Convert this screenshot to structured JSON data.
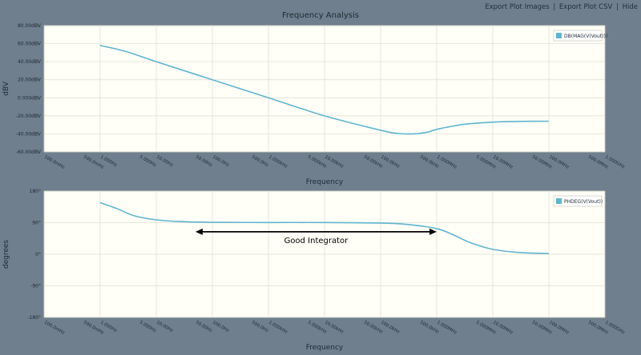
{
  "header": {
    "links": [
      "Export Plot Images",
      "Export Plot CSV",
      "Hide"
    ],
    "separator": "|"
  },
  "title": "Frequency Analysis",
  "colors": {
    "background": "#6f7f8d",
    "plot_bg": "#fffff7",
    "grid": "#dcdcd0",
    "series": "#5fb4d0"
  },
  "chart_data": [
    {
      "type": "line",
      "xscale": "log",
      "xlabel": "Frequency",
      "ylabel": "dBV",
      "ylim": [
        -60,
        80
      ],
      "yticks": [
        80,
        60,
        40,
        20,
        0,
        -20,
        -40,
        -60
      ],
      "ytick_labels": [
        "80.00dBV",
        "60.00dBV",
        "40.00dBV",
        "20.00dBV",
        "0.000dBV",
        "-20.00dBV",
        "-40.00dBV",
        "-60.00dBV"
      ],
      "xlim": [
        0.1,
        1000000000
      ],
      "xticks": [
        0.1,
        0.5,
        1,
        5,
        10,
        50,
        100,
        500,
        1000,
        5000,
        10000,
        50000,
        100000,
        500000,
        1000000,
        5000000,
        10000000,
        50000000,
        100000000,
        500000000,
        1000000000
      ],
      "xtick_labels": [
        "100.0mHz",
        "500.0mHz",
        "1.000Hz",
        "5.000Hz",
        "10.00Hz",
        "50.00Hz",
        "100.0Hz",
        "500.0Hz",
        "1.000kHz",
        "5.000kHz",
        "10.00kHz",
        "50.00kHz",
        "100.0kHz",
        "500.0kHz",
        "1.000MHz",
        "5.000MHz",
        "10.00MHz",
        "50.00MHz",
        "100.0MHz",
        "500.0MHz",
        "1.000GHz"
      ],
      "grid": true,
      "legend_position": "top-right",
      "series": [
        {
          "name": "DB(MAG(V(Vout)))",
          "x": [
            1,
            3,
            10,
            100,
            1000,
            10000,
            100000,
            200000,
            400000,
            700000,
            1000000,
            3000000,
            10000000,
            30000000,
            100000000
          ],
          "y": [
            58,
            51,
            40,
            20,
            0,
            -20,
            -36,
            -39.5,
            -40,
            -38,
            -35,
            -29.5,
            -27,
            -26.2,
            -26
          ]
        }
      ]
    },
    {
      "type": "line",
      "xscale": "log",
      "xlabel": "Frequency",
      "ylabel": "degrees",
      "ylim": [
        -180,
        180
      ],
      "yticks": [
        180,
        90,
        0,
        -90,
        -180
      ],
      "ytick_labels": [
        "180°",
        "90°",
        "0°",
        "-90°",
        "-180°"
      ],
      "xlim": [
        0.1,
        1000000000
      ],
      "xticks": [
        0.1,
        0.5,
        1,
        5,
        10,
        50,
        100,
        500,
        1000,
        5000,
        10000,
        50000,
        100000,
        500000,
        1000000,
        5000000,
        10000000,
        50000000,
        100000000,
        500000000,
        1000000000
      ],
      "xtick_labels": [
        "100.0mHz",
        "500.0mHz",
        "1.000Hz",
        "5.000Hz",
        "10.00Hz",
        "50.00Hz",
        "100.0Hz",
        "500.0Hz",
        "1.000kHz",
        "5.000kHz",
        "10.00kHz",
        "50.00kHz",
        "100.0kHz",
        "500.0kHz",
        "1.000MHz",
        "5.000MHz",
        "10.00MHz",
        "50.00MHz",
        "100.0MHz",
        "500.0MHz",
        "1.000GHz"
      ],
      "grid": true,
      "legend_position": "top-right",
      "series": [
        {
          "name": "PHDEG(V(Vout))",
          "x": [
            1,
            2,
            4,
            10,
            30,
            100,
            1000,
            10000,
            100000,
            300000,
            1000000,
            2000000,
            4000000,
            10000000,
            30000000,
            100000000
          ],
          "y": [
            147,
            130,
            110,
            98,
            93,
            91,
            90.5,
            90.5,
            89,
            85,
            73,
            55,
            33,
            14,
            5,
            2
          ]
        }
      ],
      "annotations": [
        {
          "text": "Good Integrator",
          "x_from": 50,
          "x_to": 1000000,
          "y": 64
        }
      ]
    }
  ]
}
